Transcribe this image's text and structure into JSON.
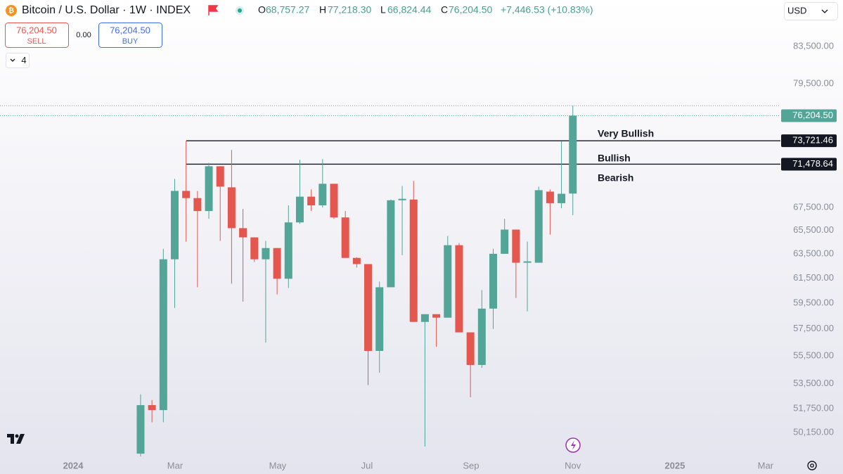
{
  "header": {
    "title": "Bitcoin / U.S. Dollar · 1W · INDEX",
    "o": "O",
    "open": "68,757.27",
    "h": "H",
    "high": "77,218.30",
    "l": "L",
    "low": "66,824.44",
    "c": "C",
    "close": "76,204.50",
    "change": "+7,446.53 (+10.83%)"
  },
  "trade": {
    "sell_price": "76,204.50",
    "sell": "SELL",
    "spread": "0.00",
    "buy_price": "76,204.50",
    "buy": "BUY"
  },
  "indicators_count": "4",
  "currency": "USD",
  "chart_data": {
    "type": "candlestick",
    "log_scale": true,
    "grid": false,
    "up_color": "#52a597",
    "down_color": "#e3574e",
    "categories": [
      null,
      null,
      null,
      null,
      null,
      null,
      null,
      null,
      null,
      null,
      null,
      null,
      null,
      null,
      null,
      null,
      null,
      null,
      null,
      null,
      null,
      null,
      null,
      null,
      null,
      null,
      null,
      null,
      null,
      null,
      null,
      null,
      null,
      null,
      null,
      null,
      null,
      null,
      null
    ],
    "open": [
      48773,
      52000,
      51659,
      63043,
      69000,
      68348,
      67188,
      71283,
      69326,
      65688,
      64894,
      63043,
      63985,
      61443,
      66188,
      68478,
      67696,
      69652,
      66625,
      63157,
      62643,
      55859,
      60757,
      68152,
      68217,
      58041,
      58635,
      58365,
      64227,
      57244,
      54833,
      59068,
      63500,
      65563,
      62757,
      62757,
      68935,
      67891,
      68757.27
    ],
    "high": [
      52750,
      52350,
      63924,
      70109,
      73721,
      69000,
      71615,
      71283,
      72838,
      67375,
      64894,
      64591,
      63985,
      67696,
      71887,
      69130,
      71955,
      69652,
      67188,
      63214,
      62643,
      61214,
      68217,
      69456,
      69913,
      58635,
      58635,
      65015,
      64409,
      57244,
      60529,
      63924,
      66500,
      65563,
      64530,
      69391,
      69130,
      73653,
      77218.3
    ],
    "low": [
      48600,
      50837,
      50837,
      59122,
      64530,
      60757,
      66500,
      64591,
      61043,
      59614,
      62814,
      56474,
      60186,
      60700,
      66063,
      67188,
      67500,
      66500,
      63157,
      62357,
      53400,
      54269,
      60757,
      63386,
      58041,
      49230,
      56166,
      58365,
      57244,
      52550,
      54628,
      57500,
      63500,
      59900,
      58851,
      62757,
      65136,
      67438,
      66824.44
    ],
    "close": [
      52000,
      51659,
      63043,
      69000,
      68348,
      67188,
      71283,
      69391,
      65688,
      64894,
      63043,
      63985,
      61443,
      66188,
      68478,
      67696,
      69652,
      66625,
      63157,
      62643,
      55859,
      60757,
      68152,
      68283,
      58041,
      58635,
      58365,
      64227,
      57244,
      54833,
      59068,
      63500,
      65563,
      62757,
      62871,
      69065,
      67891,
      68739,
      76204.5
    ],
    "xlim": [
      -12.36,
      56.25
    ],
    "xticks": [
      {
        "value": -5.93,
        "label": "2024"
      },
      {
        "value": 3.03,
        "label": "Mar"
      },
      {
        "value": 12.05,
        "label": "May"
      },
      {
        "value": 19.9,
        "label": "Jul"
      },
      {
        "value": 29.05,
        "label": "Sep"
      },
      {
        "value": 38.0,
        "label": "Nov"
      },
      {
        "value": 46.97,
        "label": "2025"
      },
      {
        "value": 54.94,
        "label": "Mar"
      }
    ],
    "ylim": [
      48550,
      88780
    ],
    "yticks": [
      {
        "value": 83500,
        "label": "83,500.00"
      },
      {
        "value": 79500,
        "label": "79,500.00"
      },
      {
        "value": 67500,
        "label": "67,500.00"
      },
      {
        "value": 65500,
        "label": "65,500.00"
      },
      {
        "value": 63500,
        "label": "63,500.00"
      },
      {
        "value": 61500,
        "label": "61,500.00"
      },
      {
        "value": 59500,
        "label": "59,500.00"
      },
      {
        "value": 57500,
        "label": "57,500.00"
      },
      {
        "value": 55500,
        "label": "55,500.00"
      },
      {
        "value": 53500,
        "label": "53,500.00"
      },
      {
        "value": 51750,
        "label": "51,750.00"
      },
      {
        "value": 50150,
        "label": "50,150.00"
      }
    ],
    "last_price": {
      "value": 76204.5,
      "label": "76,204.50"
    },
    "levels": [
      {
        "value": 73721.46,
        "label": "73,721.46"
      },
      {
        "value": 71478.64,
        "label": "71,478.64"
      }
    ],
    "annotations": [
      "Very Bullish",
      "Bullish",
      "Bearish"
    ]
  }
}
